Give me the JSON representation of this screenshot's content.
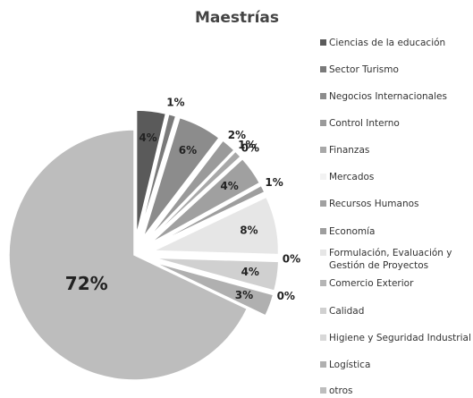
{
  "chart_data": {
    "type": "pie",
    "title": "Maestrías",
    "categories": [
      "Ciencias de la educación",
      "Sector Turismo",
      "Negocios Internacionales",
      "Control Interno",
      "Finanzas",
      "Mercados",
      "Recursos Humanos",
      "Economía",
      "Formulación, Evaluación y Gestión de Proyectos",
      "Comercio Exterior",
      "Calidad",
      "Higiene y Seguridad Industrial",
      "Logística",
      "otros"
    ],
    "values": [
      4,
      1,
      6,
      2,
      1,
      0,
      4,
      1,
      8,
      0,
      4,
      0,
      3,
      72
    ],
    "colors": [
      "#5a5a5a",
      "#7a7a7a",
      "#8c8c8c",
      "#9a9a9a",
      "#a8a8a8",
      "#f2f2f2",
      "#a0a0a0",
      "#9e9e9e",
      "#e6e6e6",
      "#b5b5b5",
      "#d0d0d0",
      "#d8d8d8",
      "#b0b0b0",
      "#bdbdbd"
    ],
    "value_labels": [
      "4%",
      "1%",
      "6%",
      "2%",
      "1%",
      "0%",
      "4%",
      "1%",
      "8%",
      "0%",
      "4%",
      "0%",
      "3%",
      "72%"
    ],
    "legend": "right"
  }
}
